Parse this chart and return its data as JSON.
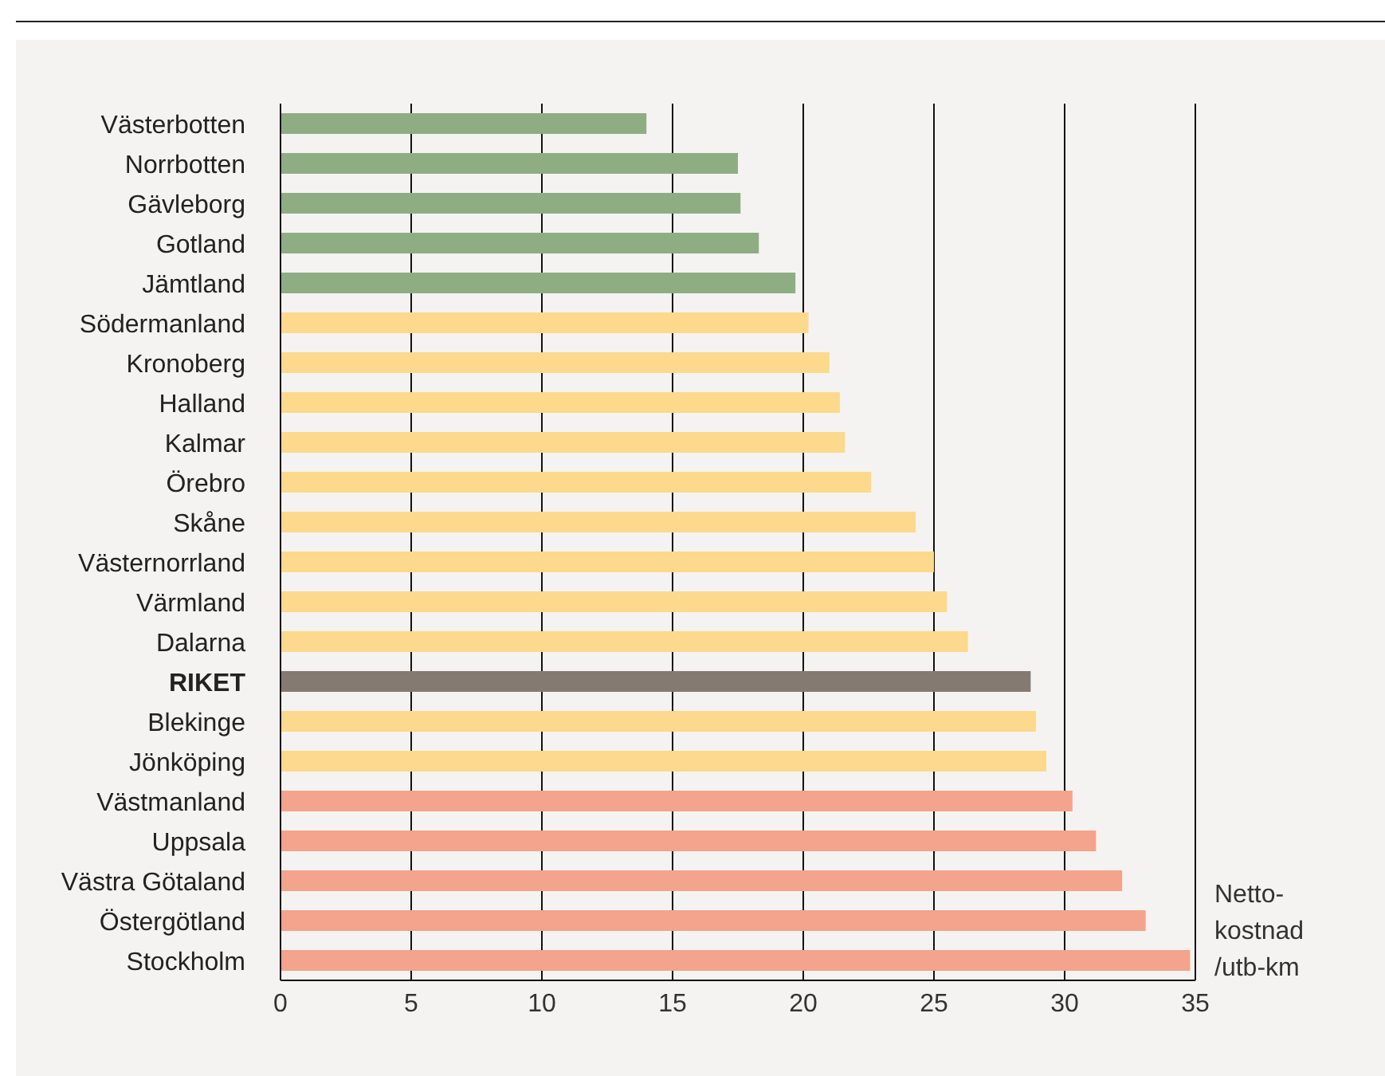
{
  "chart_data": {
    "type": "bar",
    "orientation": "horizontal",
    "xlabel": "Netto-kostnad /utb-km",
    "categories": [
      "Västerbotten",
      "Norrbotten",
      "Gävleborg",
      "Gotland",
      "Jämtland",
      "Södermanland",
      "Kronoberg",
      "Halland",
      "Kalmar",
      "Örebro",
      "Skåne",
      "Västernorrland",
      "Värmland",
      "Dalarna",
      "RIKET",
      "Blekinge",
      "Jönköping",
      "Västmanland",
      "Uppsala",
      "Västra Götaland",
      "Östergötland",
      "Stockholm"
    ],
    "values": [
      14.0,
      17.5,
      17.6,
      18.3,
      19.7,
      20.2,
      21.0,
      21.4,
      21.6,
      22.6,
      24.3,
      25.0,
      25.5,
      26.3,
      28.7,
      28.9,
      29.3,
      30.3,
      31.2,
      32.2,
      33.1,
      34.8
    ],
    "colors": [
      "#8fad83",
      "#8fad83",
      "#8fad83",
      "#8fad83",
      "#8fad83",
      "#fcd98c",
      "#fcd98c",
      "#fcd98c",
      "#fcd98c",
      "#fcd98c",
      "#fcd98c",
      "#fcd98c",
      "#fcd98c",
      "#fcd98c",
      "#857a72",
      "#fcd98c",
      "#fcd98c",
      "#f4a38c",
      "#f4a38c",
      "#f4a38c",
      "#f4a38c",
      "#f4a38c"
    ],
    "xlim": [
      0,
      35
    ],
    "xticks": [
      0,
      5,
      10,
      15,
      20,
      25,
      30,
      35
    ],
    "grid": "x"
  }
}
